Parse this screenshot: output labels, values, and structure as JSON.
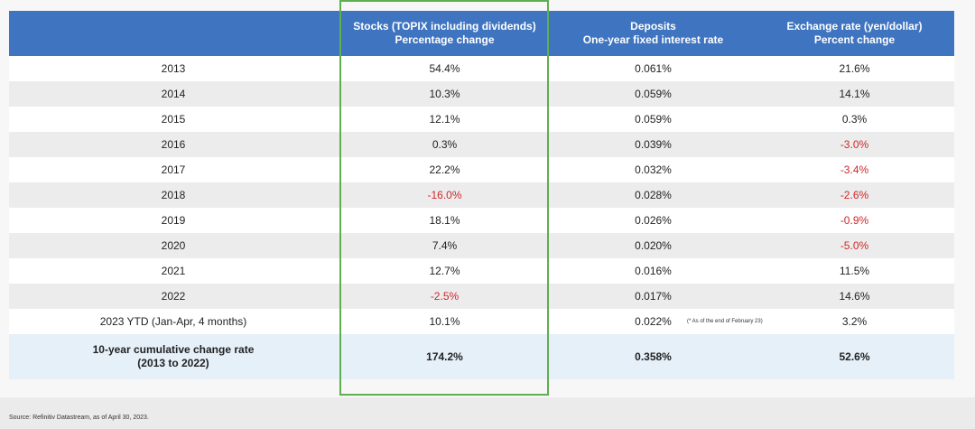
{
  "headers": {
    "stocks": [
      "Stocks (TOPIX including dividends)",
      "Percentage change"
    ],
    "deposits": [
      "Deposits",
      "One-year fixed interest rate"
    ],
    "exchange": [
      "Exchange rate (yen/dollar)",
      "Percent change"
    ]
  },
  "rows": [
    {
      "year": "2013",
      "stocks": "54.4%",
      "deposits": "0.061%",
      "exchange": "21.6%"
    },
    {
      "year": "2014",
      "stocks": "10.3%",
      "deposits": "0.059%",
      "exchange": "14.1%"
    },
    {
      "year": "2015",
      "stocks": "12.1%",
      "deposits": "0.059%",
      "exchange": "0.3%"
    },
    {
      "year": "2016",
      "stocks": "0.3%",
      "deposits": "0.039%",
      "exchange": "-3.0%"
    },
    {
      "year": "2017",
      "stocks": "22.2%",
      "deposits": "0.032%",
      "exchange": "-3.4%"
    },
    {
      "year": "2018",
      "stocks": "-16.0%",
      "deposits": "0.028%",
      "exchange": "-2.6%"
    },
    {
      "year": "2019",
      "stocks": "18.1%",
      "deposits": "0.026%",
      "exchange": "-0.9%"
    },
    {
      "year": "2020",
      "stocks": "7.4%",
      "deposits": "0.020%",
      "exchange": "-5.0%"
    },
    {
      "year": "2021",
      "stocks": "12.7%",
      "deposits": "0.016%",
      "exchange": "11.5%"
    },
    {
      "year": "2022",
      "stocks": "-2.5%",
      "deposits": "0.017%",
      "exchange": "14.6%"
    },
    {
      "year": "2023 YTD (Jan-Apr, 4 months)",
      "stocks": "10.1%",
      "deposits": "0.022%",
      "exchange": "3.2%"
    }
  ],
  "note": "(* As of the end of February 23)",
  "total": {
    "label": [
      "10-year cumulative change rate",
      "(2013 to 2022)"
    ],
    "stocks": "174.2%",
    "deposits": "0.358%",
    "exchange": "52.6%"
  },
  "source": "Source: Refinitiv Datastream, as of April 30, 2023.",
  "colors": {
    "header": "#3f74c0",
    "negative": "#d0282a",
    "highlight": "#5fae4f",
    "total_row": "#e6f0f9"
  }
}
